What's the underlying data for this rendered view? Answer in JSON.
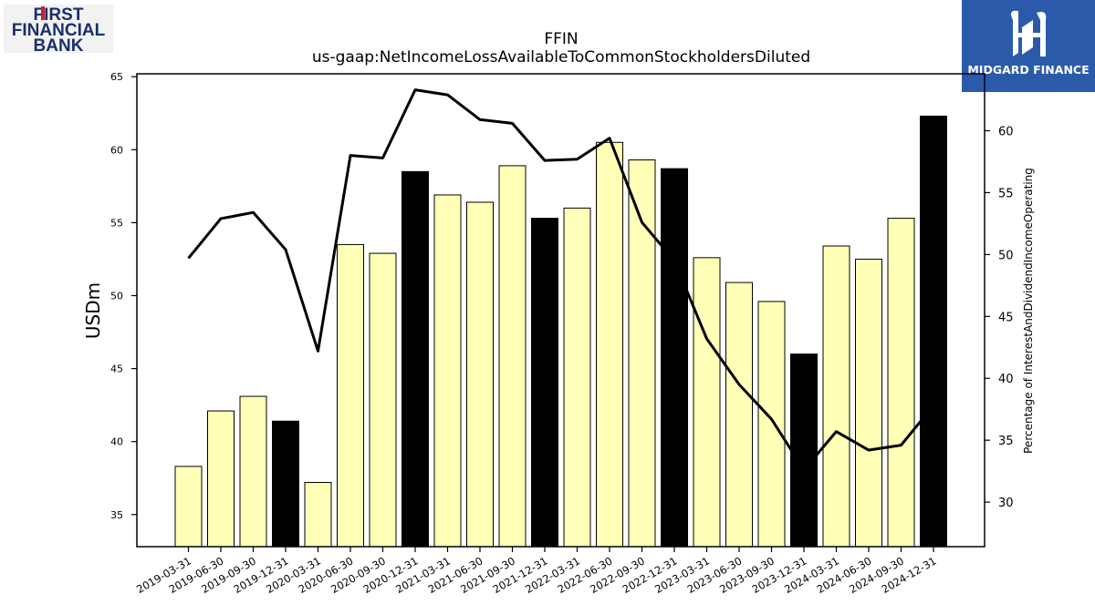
{
  "logos": {
    "left": {
      "line1": "FIRST",
      "line2": "FINANCIAL",
      "line3": "BANK",
      "color": "#1b2f6e",
      "accent": "#d0202e"
    },
    "right": {
      "text": "MIDGARD FINANCE",
      "bg": "#2b5aab"
    }
  },
  "chart_data": {
    "type": "bar",
    "title": "FFIN",
    "subtitle": "us-gaap:NetIncomeLossAvailableToCommonStockholdersDiluted",
    "ylabel": "USDm",
    "y2label": "Percentage of InterestAndDividendIncomeOperating",
    "ylim": [
      32.8,
      65.2
    ],
    "y2lim": [
      26.4,
      64.6
    ],
    "yticks": [
      35,
      40,
      45,
      50,
      55,
      60,
      65
    ],
    "y2ticks": [
      30,
      35,
      40,
      45,
      50,
      55,
      60
    ],
    "categories": [
      "2019-03-31",
      "2019-06-30",
      "2019-09-30",
      "2019-12-31",
      "2020-03-31",
      "2020-06-30",
      "2020-09-30",
      "2020-12-31",
      "2021-03-31",
      "2021-06-30",
      "2021-09-30",
      "2021-12-31",
      "2022-03-31",
      "2022-06-30",
      "2022-09-30",
      "2022-12-31",
      "2023-03-31",
      "2023-06-30",
      "2023-09-30",
      "2023-12-31",
      "2024-03-31",
      "2024-06-30",
      "2024-09-30",
      "2024-12-31"
    ],
    "series": [
      {
        "kind": "bar",
        "values": [
          38.3,
          42.1,
          43.1,
          41.4,
          37.2,
          53.5,
          52.9,
          58.5,
          56.9,
          56.4,
          58.9,
          55.3,
          56.0,
          60.5,
          59.3,
          58.7,
          52.6,
          50.9,
          49.6,
          46.0,
          53.4,
          52.5,
          55.3,
          62.3
        ],
        "highlight": [
          false,
          false,
          false,
          true,
          false,
          false,
          false,
          true,
          false,
          false,
          false,
          true,
          false,
          false,
          false,
          true,
          false,
          false,
          false,
          true,
          false,
          false,
          false,
          true
        ],
        "color": "#ffffb8",
        "highlight_color": "#000000"
      },
      {
        "kind": "line",
        "axis": "y2",
        "values": [
          49.7,
          52.9,
          53.4,
          50.4,
          42.2,
          58.0,
          57.8,
          63.3,
          62.9,
          60.9,
          60.6,
          57.6,
          57.7,
          59.4,
          52.6,
          49.5,
          43.2,
          39.5,
          36.7,
          32.6,
          35.7,
          34.2,
          34.6,
          37.8
        ],
        "color": "#000000"
      }
    ]
  }
}
